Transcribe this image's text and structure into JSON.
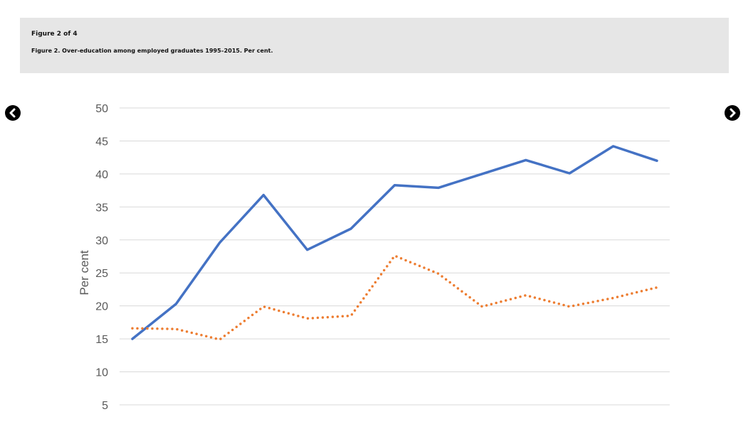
{
  "figure": {
    "counter": "Figure 2 of 4",
    "caption": "Figure 2. Over-education among employed graduates 1995–2015. Per cent."
  },
  "navigation": {
    "prev_icon": "chevron-left-circle-icon",
    "next_icon": "chevron-right-circle-icon"
  },
  "chart_data": {
    "type": "line",
    "ylabel": "Per cent",
    "yticks": [
      5,
      10,
      15,
      20,
      25,
      30,
      35,
      40,
      45,
      50
    ],
    "ylim": [
      5,
      50
    ],
    "grid": true,
    "series": [
      {
        "color": "#4472c4",
        "style": "solid",
        "values": [
          15.0,
          20.3,
          29.6,
          36.8,
          28.5,
          31.7,
          38.3,
          37.9,
          40.0,
          42.1,
          40.1,
          44.2,
          42.0
        ]
      },
      {
        "color": "#ed7d31",
        "style": "dotted",
        "values": [
          16.6,
          16.5,
          14.9,
          19.9,
          18.1,
          18.5,
          27.6,
          24.9,
          19.9,
          21.6,
          19.9,
          21.2,
          22.8
        ]
      }
    ]
  }
}
